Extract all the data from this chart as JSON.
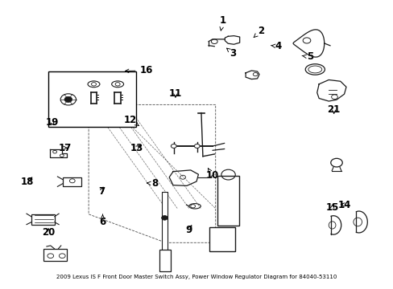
{
  "background_color": "#ffffff",
  "fig_width": 4.89,
  "fig_height": 3.6,
  "dpi": 100,
  "label_fontsize": 8.5,
  "label_color": "#000000",
  "line_color": "#000000",
  "cc": "#1a1a1a",
  "title": "2009 Lexus IS F Front Door Master Switch Assy, Power Window Regulator Diagram for 84040-53110",
  "title_fontsize": 5.0,
  "label_positions": {
    "1": [
      0.567,
      0.937,
      0.56,
      0.89
    ],
    "2": [
      0.665,
      0.9,
      0.645,
      0.875
    ],
    "3": [
      0.593,
      0.82,
      0.575,
      0.84
    ],
    "4": [
      0.71,
      0.845,
      0.69,
      0.848
    ],
    "5": [
      0.79,
      0.808,
      0.77,
      0.812
    ],
    "6": [
      0.258,
      0.228,
      0.258,
      0.255
    ],
    "7": [
      0.255,
      0.335,
      0.262,
      0.36
    ],
    "8": [
      0.392,
      0.362,
      0.37,
      0.365
    ],
    "9": [
      0.48,
      0.2,
      0.49,
      0.225
    ],
    "10": [
      0.54,
      0.39,
      0.528,
      0.418
    ],
    "11": [
      0.445,
      0.68,
      0.445,
      0.655
    ],
    "12": [
      0.328,
      0.587,
      0.352,
      0.565
    ],
    "13": [
      0.345,
      0.488,
      0.36,
      0.502
    ],
    "14": [
      0.88,
      0.288,
      0.862,
      0.292
    ],
    "15": [
      0.848,
      0.278,
      0.85,
      0.3
    ],
    "16": [
      0.37,
      0.76,
      0.308,
      0.758
    ],
    "17": [
      0.162,
      0.488,
      0.168,
      0.488
    ],
    "18": [
      0.065,
      0.368,
      0.082,
      0.392
    ],
    "19": [
      0.128,
      0.578,
      0.138,
      0.562
    ],
    "20": [
      0.118,
      0.192,
      0.12,
      0.215
    ],
    "21": [
      0.852,
      0.622,
      0.852,
      0.598
    ]
  }
}
